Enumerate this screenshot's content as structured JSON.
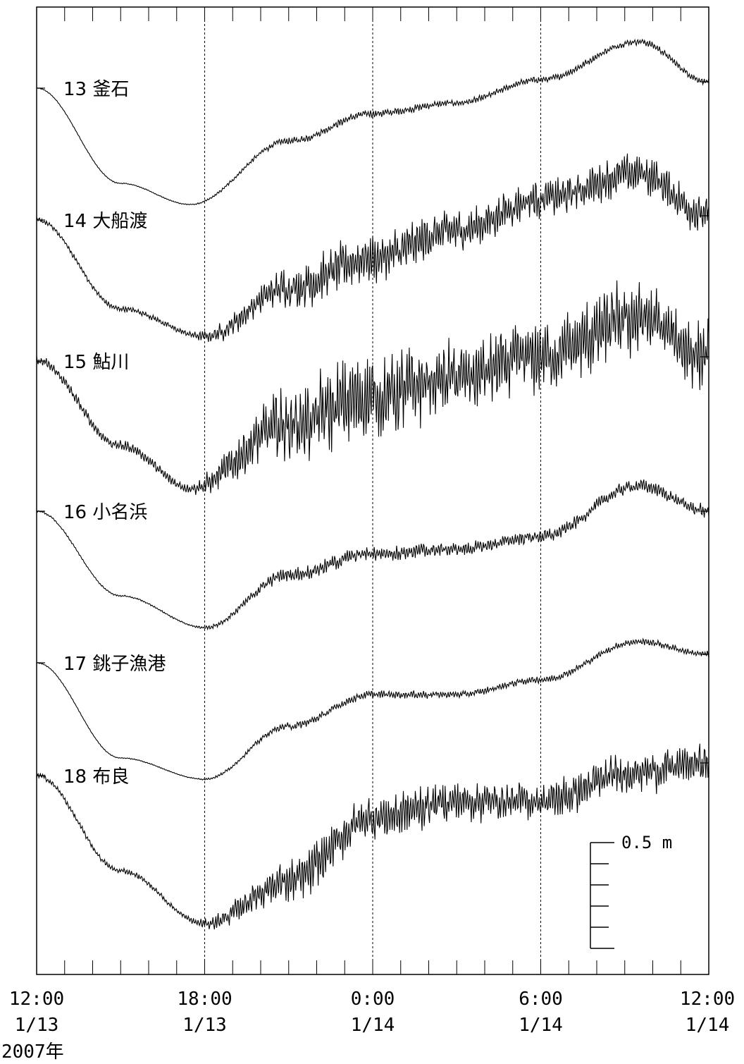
{
  "chart_data": {
    "type": "line",
    "title": "",
    "xlabel": "",
    "ylabel": "",
    "year_label": "2007年",
    "x_ticks": [
      {
        "time": "12:00",
        "date": "1/13"
      },
      {
        "time": "18:00",
        "date": "1/13"
      },
      {
        "time": "0:00",
        "date": "1/14"
      },
      {
        "time": "6:00",
        "date": "1/14"
      },
      {
        "time": "12:00",
        "date": "1/14"
      }
    ],
    "xlim_hours": [
      0,
      24
    ],
    "dashed_gridlines_at_hours": [
      6,
      12,
      18
    ],
    "scale_bar": {
      "label": "0.5 m",
      "value_m": 0.5,
      "subdivisions": 5
    },
    "series": [
      {
        "num": "13",
        "name": "釜石",
        "amp_m": 0.02,
        "shape": [
          [
            0,
            0.0
          ],
          [
            3,
            -0.45
          ],
          [
            5.5,
            -0.55
          ],
          [
            9,
            -0.25
          ],
          [
            12,
            -0.12
          ],
          [
            15,
            -0.07
          ],
          [
            18,
            0.04
          ],
          [
            21.5,
            0.22
          ],
          [
            24,
            0.03
          ]
        ]
      },
      {
        "num": "14",
        "name": "大船渡",
        "amp_m": 0.12,
        "shape": [
          [
            0,
            0.0
          ],
          [
            3,
            -0.42
          ],
          [
            6,
            -0.55
          ],
          [
            9,
            -0.32
          ],
          [
            12,
            -0.18
          ],
          [
            15,
            -0.05
          ],
          [
            18,
            0.1
          ],
          [
            21.5,
            0.22
          ],
          [
            24,
            0.02
          ]
        ]
      },
      {
        "num": "15",
        "name": "鮎川",
        "amp_m": 0.22,
        "shape": [
          [
            0,
            0.0
          ],
          [
            3,
            -0.4
          ],
          [
            5.5,
            -0.6
          ],
          [
            9,
            -0.3
          ],
          [
            12,
            -0.17
          ],
          [
            15,
            -0.08
          ],
          [
            18,
            0.02
          ],
          [
            21.5,
            0.2
          ],
          [
            24,
            0.02
          ]
        ]
      },
      {
        "num": "16",
        "name": "小名浜",
        "amp_m": 0.04,
        "shape": [
          [
            0,
            0.0
          ],
          [
            3,
            -0.4
          ],
          [
            6,
            -0.55
          ],
          [
            9,
            -0.3
          ],
          [
            12,
            -0.2
          ],
          [
            15,
            -0.18
          ],
          [
            18,
            -0.12
          ],
          [
            21.5,
            0.12
          ],
          [
            24,
            0.0
          ]
        ]
      },
      {
        "num": "17",
        "name": "銚子漁港",
        "amp_m": 0.02,
        "shape": [
          [
            0,
            0.0
          ],
          [
            3,
            -0.45
          ],
          [
            6,
            -0.55
          ],
          [
            9,
            -0.3
          ],
          [
            12,
            -0.15
          ],
          [
            15,
            -0.15
          ],
          [
            18,
            -0.08
          ],
          [
            21.5,
            0.1
          ],
          [
            24,
            0.04
          ]
        ]
      },
      {
        "num": "18",
        "name": "布良",
        "amp_m": 0.12,
        "shape": [
          [
            0,
            0.0
          ],
          [
            3,
            -0.45
          ],
          [
            6,
            -0.7
          ],
          [
            9,
            -0.5
          ],
          [
            12,
            -0.2
          ],
          [
            15,
            -0.12
          ],
          [
            18,
            -0.12
          ],
          [
            21.5,
            0.02
          ],
          [
            24,
            0.06
          ]
        ]
      }
    ]
  }
}
